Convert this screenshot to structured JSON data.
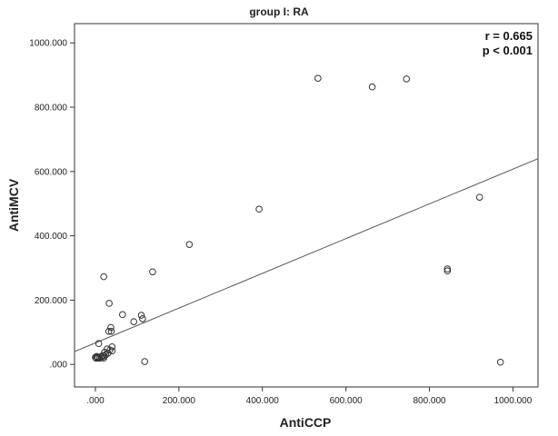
{
  "chart_data": {
    "type": "scatter",
    "title": "group I: RA",
    "xlabel": "AntiCCP",
    "ylabel": "AntiMCV",
    "xlim": [
      -50,
      1060
    ],
    "ylim": [
      -70,
      1060
    ],
    "xticks": [
      0,
      200,
      400,
      600,
      800,
      1000
    ],
    "xtick_labels": [
      ".000",
      "200.000",
      "400.000",
      "600.000",
      "800.000",
      "1000.000"
    ],
    "yticks": [
      0,
      200,
      400,
      600,
      800,
      1000
    ],
    "ytick_labels": [
      ".000",
      "200.000",
      "400.000",
      "600.000",
      "800.000",
      "1000.000"
    ],
    "grid": false,
    "annotations": [
      "r = 0.665",
      "p < 0.001"
    ],
    "fit_line": {
      "x": [
        -50,
        1060
      ],
      "y": [
        40,
        640
      ]
    },
    "points": [
      {
        "x": 533,
        "y": 890
      },
      {
        "x": 663,
        "y": 863
      },
      {
        "x": 745,
        "y": 888
      },
      {
        "x": 920,
        "y": 520
      },
      {
        "x": 843,
        "y": 297
      },
      {
        "x": 843,
        "y": 291
      },
      {
        "x": 970,
        "y": 7
      },
      {
        "x": 392,
        "y": 483
      },
      {
        "x": 225,
        "y": 373
      },
      {
        "x": 137,
        "y": 288
      },
      {
        "x": 20,
        "y": 273
      },
      {
        "x": 33,
        "y": 190
      },
      {
        "x": 65,
        "y": 155
      },
      {
        "x": 110,
        "y": 153
      },
      {
        "x": 113,
        "y": 142
      },
      {
        "x": 92,
        "y": 133
      },
      {
        "x": 37,
        "y": 115
      },
      {
        "x": 32,
        "y": 103
      },
      {
        "x": 38,
        "y": 103
      },
      {
        "x": 118,
        "y": 9
      },
      {
        "x": 8,
        "y": 65
      },
      {
        "x": 40,
        "y": 55
      },
      {
        "x": 28,
        "y": 48
      },
      {
        "x": 35,
        "y": 45
      },
      {
        "x": 40,
        "y": 42
      },
      {
        "x": 22,
        "y": 38
      },
      {
        "x": 30,
        "y": 35
      },
      {
        "x": 25,
        "y": 30
      },
      {
        "x": 18,
        "y": 28
      },
      {
        "x": 22,
        "y": 26
      },
      {
        "x": 14,
        "y": 25
      },
      {
        "x": 3,
        "y": 25
      },
      {
        "x": 0,
        "y": 22
      },
      {
        "x": 6,
        "y": 20
      },
      {
        "x": 10,
        "y": 19
      },
      {
        "x": 2,
        "y": 19
      },
      {
        "x": 15,
        "y": 22
      },
      {
        "x": 20,
        "y": 20
      },
      {
        "x": 5,
        "y": 23
      }
    ]
  }
}
